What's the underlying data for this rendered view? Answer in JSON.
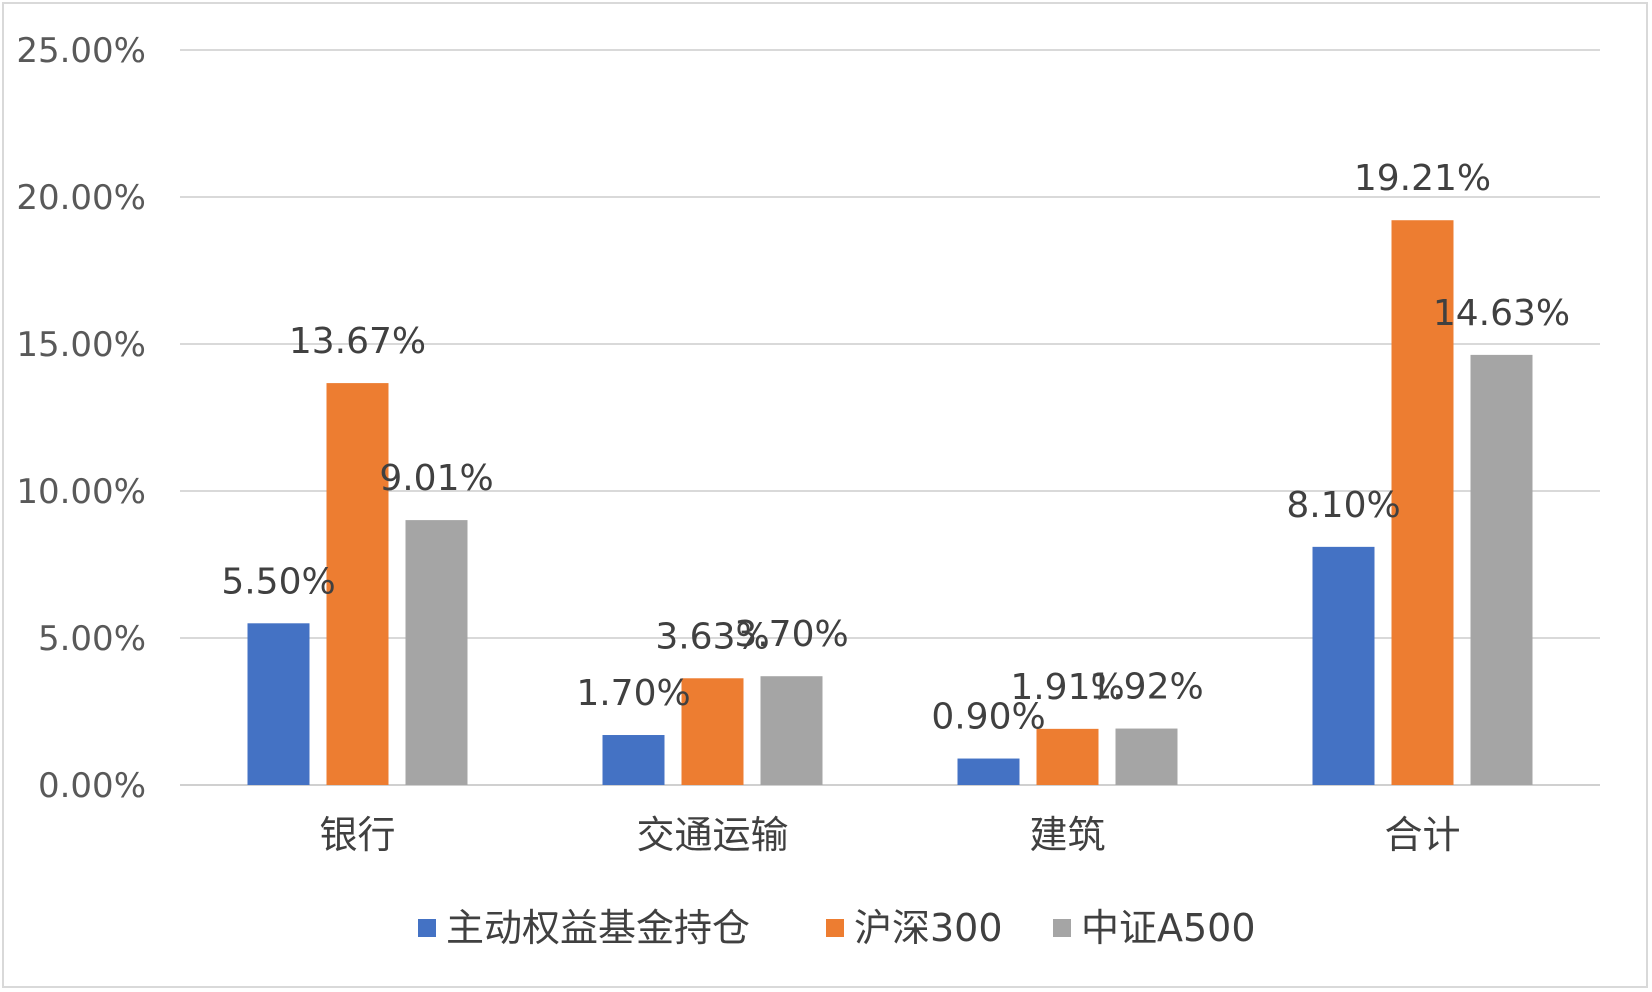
{
  "chart_data": {
    "type": "bar",
    "title": "",
    "xlabel": "",
    "ylabel": "",
    "categories": [
      "银行",
      "交通运输",
      "建筑",
      "合计"
    ],
    "series": [
      {
        "name": "主动权益基金持仓",
        "color": "#4472c4",
        "values": [
          5.5,
          1.7,
          0.9,
          8.1
        ],
        "labels": [
          "5.50%",
          "1.70%",
          "0.90%",
          "8.10%"
        ]
      },
      {
        "name": "沪深300",
        "color": "#ed7d31",
        "values": [
          13.67,
          3.63,
          1.91,
          19.21
        ],
        "labels": [
          "13.67%",
          "3.63%",
          "1.91%",
          "19.21%"
        ]
      },
      {
        "name": "中证A500",
        "color": "#a5a5a5",
        "values": [
          9.01,
          3.7,
          1.92,
          14.63
        ],
        "labels": [
          "9.01%",
          "3.70%",
          "1.92%",
          "14.63%"
        ]
      }
    ],
    "ylim": [
      0,
      25
    ],
    "yticks": [
      0,
      5,
      10,
      15,
      20,
      25
    ],
    "ytick_labels": [
      "0.00%",
      "5.00%",
      "10.00%",
      "15.00%",
      "20.00%",
      "25.00%"
    ],
    "grid": true,
    "legend_position": "bottom"
  }
}
